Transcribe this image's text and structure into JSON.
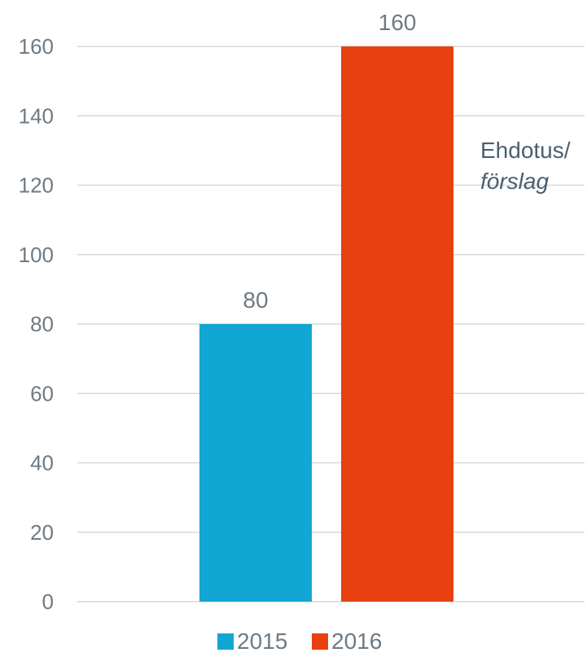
{
  "chart_data": {
    "type": "bar",
    "categories": [
      ""
    ],
    "series": [
      {
        "name": "2015",
        "values": [
          80
        ],
        "color": "#12a6d3"
      },
      {
        "name": "2016",
        "values": [
          160
        ],
        "color": "#e84010"
      }
    ],
    "ylim": [
      0,
      160
    ],
    "yticks": [
      0,
      20,
      40,
      60,
      80,
      100,
      120,
      140,
      160
    ],
    "grid": true,
    "legend_placement": "bottom",
    "data_labels": true,
    "annotation": {
      "line1": "Ehdotus/",
      "line2": "förslag"
    }
  }
}
